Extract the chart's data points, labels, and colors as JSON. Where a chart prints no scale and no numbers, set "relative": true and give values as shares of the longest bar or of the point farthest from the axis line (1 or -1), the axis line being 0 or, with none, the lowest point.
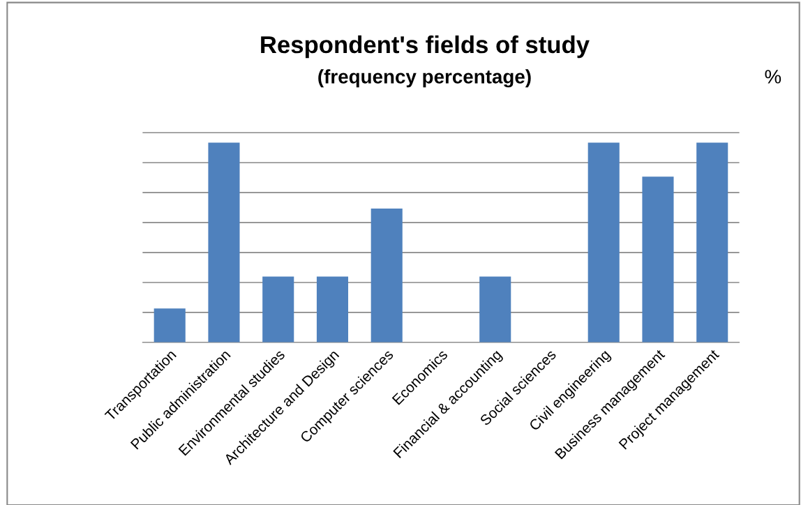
{
  "chart_data": {
    "type": "bar",
    "title": "Respondent's fields of study",
    "subtitle": "(frequency percentage)",
    "categories": [
      "Transportation",
      "Public administration",
      "Environmental studies",
      "Architecture and Design",
      "Computer sciences",
      "Economics",
      "Financial & accounting",
      "Social sciences",
      "Civil engineering",
      "Business management",
      "Project management"
    ],
    "values": [
      0.17,
      1,
      0.33,
      0.33,
      0.67,
      0,
      0.33,
      0,
      1,
      0.83,
      1
    ],
    "color": "#4f81bd",
    "relative": true,
    "grid": "y",
    "annotations": [
      "%"
    ]
  }
}
